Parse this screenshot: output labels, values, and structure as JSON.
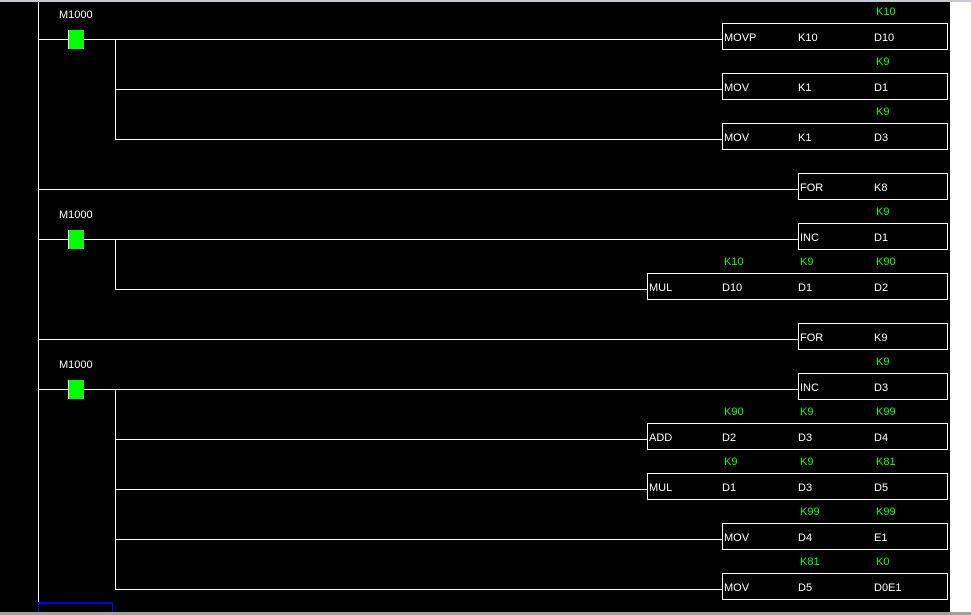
{
  "colors": {
    "background": "#000000",
    "wire": "#ffffff",
    "contact_on": "#00ff00",
    "monitor_value": "#00ff00",
    "cursor": "#0000ff"
  },
  "rungs": [
    {
      "row": 0,
      "contact": "M1000",
      "instruction": {
        "op": "MOVP",
        "operands": [
          "K10",
          "D10"
        ],
        "monitor": [
          null,
          "K10"
        ]
      }
    },
    {
      "row": 1,
      "instruction": {
        "op": "MOV",
        "operands": [
          "K1",
          "D1"
        ],
        "monitor": [
          null,
          "K9"
        ]
      }
    },
    {
      "row": 2,
      "instruction": {
        "op": "MOV",
        "operands": [
          "K1",
          "D3"
        ],
        "monitor": [
          null,
          "K9"
        ]
      }
    },
    {
      "row": 3,
      "instruction": {
        "op": "FOR",
        "operands": [
          "K8"
        ],
        "monitor": [
          null
        ]
      }
    },
    {
      "row": 4,
      "contact": "M1000",
      "instruction": {
        "op": "INC",
        "operands": [
          "D1"
        ],
        "monitor": [
          "K9"
        ]
      }
    },
    {
      "row": 5,
      "instruction": {
        "op": "MUL",
        "operands": [
          "D10",
          "D1",
          "D2"
        ],
        "monitor": [
          "K10",
          "K9",
          "K90"
        ]
      }
    },
    {
      "row": 6,
      "instruction": {
        "op": "FOR",
        "operands": [
          "K9"
        ],
        "monitor": [
          null
        ]
      }
    },
    {
      "row": 7,
      "contact": "M1000",
      "instruction": {
        "op": "INC",
        "operands": [
          "D3"
        ],
        "monitor": [
          "K9"
        ]
      }
    },
    {
      "row": 8,
      "instruction": {
        "op": "ADD",
        "operands": [
          "D2",
          "D3",
          "D4"
        ],
        "monitor": [
          "K90",
          "K9",
          "K99"
        ]
      }
    },
    {
      "row": 9,
      "instruction": {
        "op": "MUL",
        "operands": [
          "D1",
          "D3",
          "D5"
        ],
        "monitor": [
          "K9",
          "K9",
          "K81"
        ]
      }
    },
    {
      "row": 10,
      "instruction": {
        "op": "MOV",
        "operands": [
          "D4",
          "E1"
        ],
        "monitor": [
          "K99",
          "K99"
        ]
      }
    },
    {
      "row": 11,
      "instruction": {
        "op": "MOV",
        "operands": [
          "D5",
          "D0E1"
        ],
        "monitor": [
          "K81",
          "K0"
        ]
      }
    }
  ],
  "branches": [
    [
      0,
      2
    ],
    [
      4,
      5
    ],
    [
      7,
      11
    ]
  ]
}
